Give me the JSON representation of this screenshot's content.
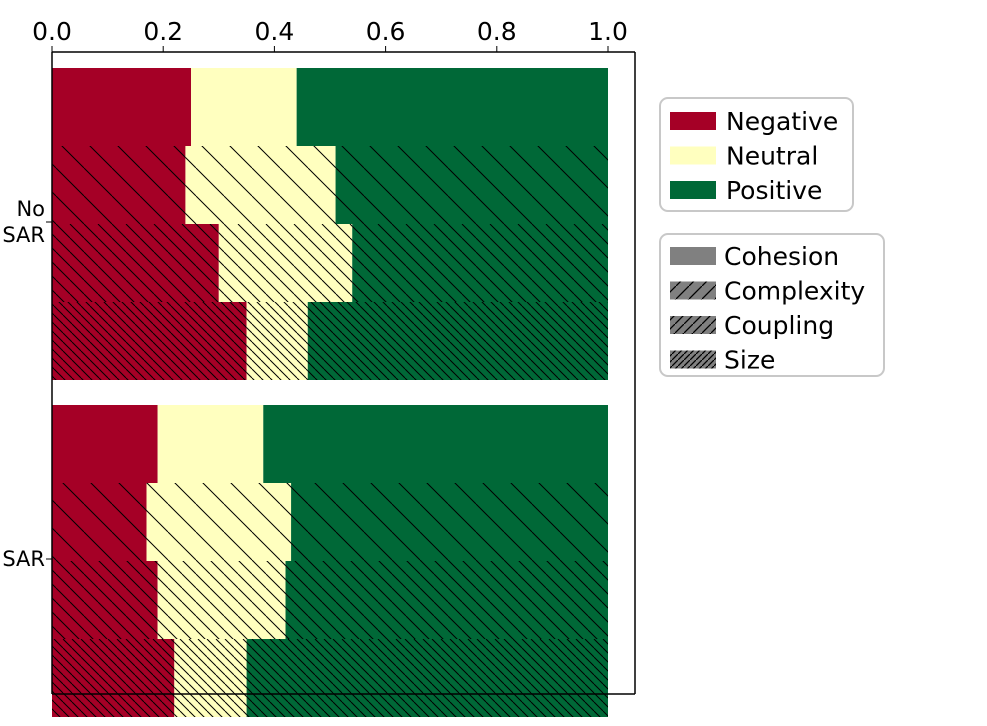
{
  "chart_data": {
    "type": "bar",
    "orientation": "horizontal",
    "stacking": "fraction",
    "xlim": [
      0.0,
      1.0
    ],
    "xticks": [
      "0.0",
      "0.2",
      "0.4",
      "0.6",
      "0.8",
      "1.0"
    ],
    "xticks_position": "top",
    "categories": [
      "No\nSAR",
      "SAR"
    ],
    "category_lines": [
      [
        "No",
        "SAR"
      ],
      [
        "SAR"
      ]
    ],
    "sentiments": [
      "Negative",
      "Neutral",
      "Positive"
    ],
    "metrics": [
      "Cohesion",
      "Complexity",
      "Coupling",
      "Size"
    ],
    "colors": {
      "Negative": "#a50026",
      "Neutral": "#ffffbf",
      "Positive": "#006837",
      "metric_legend": "#808080"
    },
    "groups": [
      {
        "category": "No SAR",
        "bars": [
          {
            "metric": "Cohesion",
            "Negative": 0.25,
            "Neutral": 0.19,
            "Positive": 0.56
          },
          {
            "metric": "Complexity",
            "Negative": 0.24,
            "Neutral": 0.27,
            "Positive": 0.49
          },
          {
            "metric": "Coupling",
            "Negative": 0.3,
            "Neutral": 0.24,
            "Positive": 0.46
          },
          {
            "metric": "Size",
            "Negative": 0.35,
            "Neutral": 0.11,
            "Positive": 0.54
          }
        ]
      },
      {
        "category": "SAR",
        "bars": [
          {
            "metric": "Cohesion",
            "Negative": 0.19,
            "Neutral": 0.19,
            "Positive": 0.62
          },
          {
            "metric": "Complexity",
            "Negative": 0.17,
            "Neutral": 0.26,
            "Positive": 0.57
          },
          {
            "metric": "Coupling",
            "Negative": 0.19,
            "Neutral": 0.23,
            "Positive": 0.58
          },
          {
            "metric": "Size",
            "Negative": 0.22,
            "Neutral": 0.13,
            "Positive": 0.65
          }
        ]
      }
    ],
    "legend": {
      "placement": "right",
      "sentiment_entries": [
        "Negative",
        "Neutral",
        "Positive"
      ],
      "metric_entries": [
        "Cohesion",
        "Complexity",
        "Coupling",
        "Size"
      ]
    },
    "grid": false
  }
}
